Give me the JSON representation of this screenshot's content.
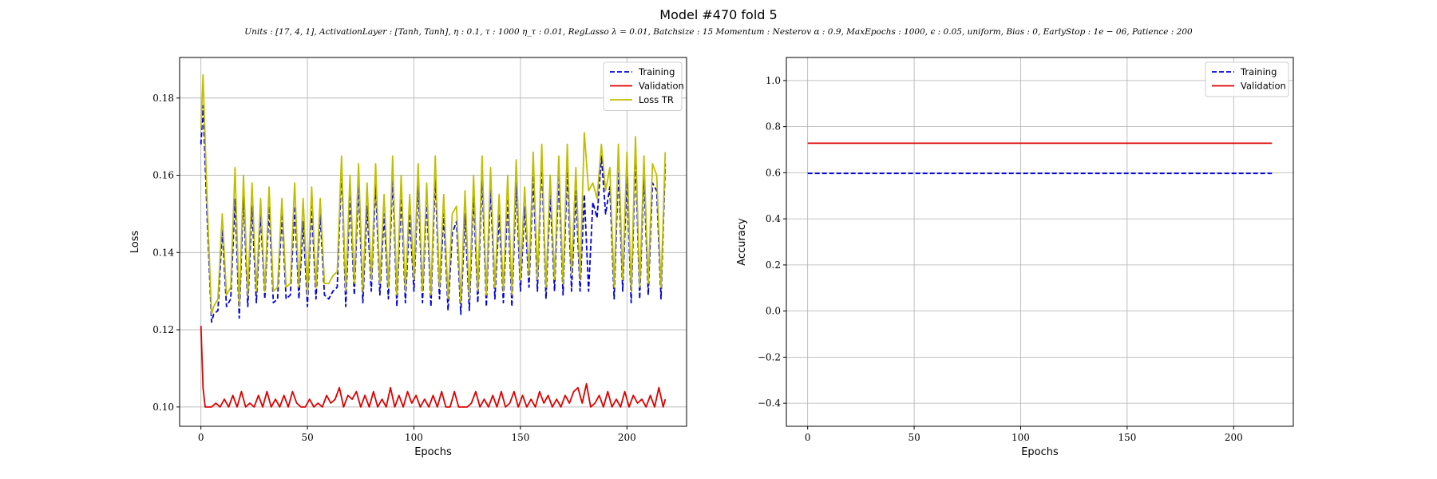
{
  "figure": {
    "title": "Model #470 fold 5",
    "subtitle": "Units : [17, 4, 1], ActivationLayer : [Tanh, Tanh], η : 0.1, τ : 1000 η_τ : 0.01, RegLasso λ = 0.01, Batchsize : 15 Momentum : Nesterov α : 0.9, MaxEpochs : 1000, ϵ : 0.05, uniform, Bias : 0, EarlyStop : 1e − 06, Patience : 200"
  },
  "colors": {
    "training": "#0000dd",
    "validation": "#dd0000",
    "loss_tr": "#bfbf00",
    "grid": "#b0b0b0"
  },
  "chart_data": [
    {
      "type": "line",
      "xlabel": "Epochs",
      "ylabel": "Loss",
      "xlim": [
        -10,
        228
      ],
      "ylim": [
        0.095,
        0.1905
      ],
      "xticks": [
        0,
        50,
        100,
        150,
        200
      ],
      "xtick_labels": [
        "0",
        "50",
        "100",
        "150",
        "200"
      ],
      "yticks": [
        0.1,
        0.12,
        0.14,
        0.16,
        0.18
      ],
      "ytick_labels": [
        "0.10",
        "0.12",
        "0.14",
        "0.16",
        "0.18"
      ],
      "grid": true,
      "legend": "top-right",
      "series": [
        {
          "name": "Training",
          "style": "dashed",
          "color": "#0000dd",
          "x": [
            0,
            1,
            3,
            5,
            6,
            8,
            10,
            12,
            14,
            16,
            18,
            20,
            22,
            24,
            26,
            28,
            30,
            32,
            34,
            36,
            38,
            40,
            42,
            44,
            46,
            48,
            50,
            52,
            54,
            56,
            58,
            60,
            62,
            64,
            66,
            68,
            70,
            72,
            74,
            76,
            78,
            80,
            82,
            84,
            86,
            88,
            90,
            92,
            94,
            96,
            98,
            100,
            102,
            104,
            106,
            108,
            110,
            112,
            114,
            116,
            118,
            120,
            122,
            124,
            126,
            128,
            130,
            132,
            134,
            136,
            138,
            140,
            142,
            144,
            146,
            148,
            150,
            152,
            154,
            156,
            158,
            160,
            162,
            164,
            166,
            168,
            170,
            172,
            174,
            176,
            178,
            180,
            182,
            184,
            186,
            188,
            190,
            192,
            194,
            196,
            198,
            200,
            202,
            204,
            206,
            208,
            210,
            212,
            214,
            216,
            218
          ],
          "y": [
            0.168,
            0.178,
            0.148,
            0.122,
            0.124,
            0.125,
            0.146,
            0.126,
            0.128,
            0.154,
            0.123,
            0.155,
            0.126,
            0.152,
            0.127,
            0.15,
            0.128,
            0.152,
            0.127,
            0.128,
            0.15,
            0.128,
            0.129,
            0.152,
            0.128,
            0.148,
            0.126,
            0.152,
            0.128,
            0.15,
            0.129,
            0.128,
            0.13,
            0.131,
            0.162,
            0.126,
            0.155,
            0.129,
            0.158,
            0.127,
            0.152,
            0.13,
            0.158,
            0.129,
            0.15,
            0.128,
            0.16,
            0.126,
            0.155,
            0.127,
            0.15,
            0.13,
            0.158,
            0.127,
            0.154,
            0.126,
            0.16,
            0.128,
            0.15,
            0.125,
            0.145,
            0.148,
            0.124,
            0.15,
            0.125,
            0.155,
            0.127,
            0.16,
            0.126,
            0.157,
            0.128,
            0.15,
            0.127,
            0.154,
            0.126,
            0.158,
            0.13,
            0.152,
            0.131,
            0.16,
            0.13,
            0.164,
            0.128,
            0.155,
            0.13,
            0.16,
            0.129,
            0.162,
            0.13,
            0.156,
            0.13,
            0.155,
            0.13,
            0.153,
            0.149,
            0.165,
            0.15,
            0.157,
            0.128,
            0.162,
            0.13,
            0.16,
            0.127,
            0.165,
            0.128,
            0.16,
            0.129,
            0.158,
            0.156,
            0.128,
            0.163
          ]
        },
        {
          "name": "Validation",
          "style": "solid",
          "color": "#dd0000",
          "x": [
            0,
            1,
            2,
            3,
            5,
            7,
            9,
            11,
            13,
            15,
            17,
            19,
            21,
            23,
            25,
            27,
            29,
            31,
            33,
            35,
            37,
            39,
            41,
            43,
            45,
            47,
            49,
            51,
            53,
            55,
            57,
            59,
            61,
            63,
            65,
            67,
            69,
            71,
            73,
            75,
            77,
            79,
            81,
            83,
            85,
            87,
            89,
            91,
            93,
            95,
            97,
            99,
            101,
            103,
            105,
            107,
            109,
            111,
            113,
            115,
            117,
            119,
            121,
            123,
            125,
            127,
            129,
            131,
            133,
            135,
            137,
            139,
            141,
            143,
            145,
            147,
            149,
            151,
            153,
            155,
            157,
            159,
            161,
            163,
            165,
            167,
            169,
            171,
            173,
            175,
            177,
            179,
            181,
            183,
            185,
            187,
            189,
            191,
            193,
            195,
            197,
            199,
            201,
            203,
            205,
            207,
            209,
            211,
            213,
            215,
            217,
            218
          ],
          "y": [
            0.121,
            0.105,
            0.1,
            0.1,
            0.1,
            0.101,
            0.1,
            0.102,
            0.1,
            0.103,
            0.1,
            0.104,
            0.1,
            0.101,
            0.1,
            0.103,
            0.1,
            0.104,
            0.1,
            0.102,
            0.1,
            0.103,
            0.1,
            0.104,
            0.101,
            0.1,
            0.1,
            0.102,
            0.1,
            0.101,
            0.1,
            0.103,
            0.101,
            0.102,
            0.105,
            0.1,
            0.103,
            0.102,
            0.104,
            0.1,
            0.103,
            0.1,
            0.104,
            0.1,
            0.102,
            0.1,
            0.105,
            0.1,
            0.103,
            0.1,
            0.104,
            0.101,
            0.103,
            0.1,
            0.102,
            0.1,
            0.103,
            0.1,
            0.104,
            0.1,
            0.1,
            0.104,
            0.1,
            0.1,
            0.1,
            0.101,
            0.104,
            0.1,
            0.102,
            0.1,
            0.103,
            0.1,
            0.104,
            0.1,
            0.101,
            0.104,
            0.1,
            0.103,
            0.1,
            0.102,
            0.1,
            0.104,
            0.101,
            0.103,
            0.1,
            0.102,
            0.1,
            0.103,
            0.101,
            0.104,
            0.105,
            0.101,
            0.106,
            0.1,
            0.101,
            0.103,
            0.1,
            0.104,
            0.1,
            0.102,
            0.1,
            0.104,
            0.1,
            0.103,
            0.101,
            0.102,
            0.1,
            0.103,
            0.1,
            0.105,
            0.1,
            0.102
          ]
        },
        {
          "name": "Loss TR",
          "style": "solid",
          "color": "#bfbf00",
          "x": [
            0,
            1,
            3,
            5,
            6,
            8,
            10,
            12,
            14,
            16,
            18,
            20,
            22,
            24,
            26,
            28,
            30,
            32,
            34,
            36,
            38,
            40,
            42,
            44,
            46,
            48,
            50,
            52,
            54,
            56,
            58,
            60,
            62,
            64,
            66,
            68,
            70,
            72,
            74,
            76,
            78,
            80,
            82,
            84,
            86,
            88,
            90,
            92,
            94,
            96,
            98,
            100,
            102,
            104,
            106,
            108,
            110,
            112,
            114,
            116,
            118,
            120,
            122,
            124,
            126,
            128,
            130,
            132,
            134,
            136,
            138,
            140,
            142,
            144,
            146,
            148,
            150,
            152,
            154,
            156,
            158,
            160,
            162,
            164,
            166,
            168,
            170,
            172,
            174,
            176,
            178,
            180,
            182,
            184,
            186,
            188,
            190,
            192,
            194,
            196,
            198,
            200,
            202,
            204,
            206,
            208,
            210,
            212,
            214,
            216,
            218
          ],
          "y": [
            0.172,
            0.186,
            0.152,
            0.124,
            0.126,
            0.128,
            0.15,
            0.129,
            0.131,
            0.162,
            0.126,
            0.16,
            0.129,
            0.158,
            0.13,
            0.154,
            0.13,
            0.157,
            0.13,
            0.131,
            0.154,
            0.131,
            0.132,
            0.158,
            0.131,
            0.154,
            0.129,
            0.157,
            0.131,
            0.154,
            0.132,
            0.132,
            0.134,
            0.135,
            0.165,
            0.13,
            0.16,
            0.132,
            0.163,
            0.13,
            0.158,
            0.133,
            0.163,
            0.132,
            0.155,
            0.131,
            0.165,
            0.129,
            0.16,
            0.13,
            0.155,
            0.133,
            0.163,
            0.13,
            0.158,
            0.129,
            0.165,
            0.131,
            0.155,
            0.128,
            0.15,
            0.152,
            0.127,
            0.156,
            0.128,
            0.16,
            0.13,
            0.165,
            0.129,
            0.162,
            0.131,
            0.155,
            0.13,
            0.16,
            0.129,
            0.164,
            0.133,
            0.157,
            0.134,
            0.166,
            0.133,
            0.168,
            0.131,
            0.16,
            0.133,
            0.165,
            0.132,
            0.168,
            0.134,
            0.162,
            0.133,
            0.171,
            0.156,
            0.158,
            0.154,
            0.168,
            0.156,
            0.162,
            0.131,
            0.168,
            0.133,
            0.166,
            0.13,
            0.17,
            0.131,
            0.165,
            0.132,
            0.163,
            0.16,
            0.131,
            0.166
          ]
        }
      ]
    },
    {
      "type": "line",
      "xlabel": "Epochs",
      "ylabel": "Accuracy",
      "xlim": [
        -10,
        228
      ],
      "ylim": [
        -0.5,
        1.1
      ],
      "xticks": [
        0,
        50,
        100,
        150,
        200
      ],
      "xtick_labels": [
        "0",
        "50",
        "100",
        "150",
        "200"
      ],
      "yticks": [
        -0.4,
        -0.2,
        0.0,
        0.2,
        0.4,
        0.6,
        0.8,
        1.0
      ],
      "ytick_labels": [
        "−0.4",
        "−0.2",
        "0.0",
        "0.2",
        "0.4",
        "0.6",
        "0.8",
        "1.0"
      ],
      "grid": true,
      "legend": "top-right",
      "series": [
        {
          "name": "Training",
          "style": "dashed",
          "color": "#0000dd",
          "x": [
            0,
            218
          ],
          "y": [
            0.597,
            0.597
          ]
        },
        {
          "name": "Validation",
          "style": "solid",
          "color": "#dd0000",
          "x": [
            0,
            218
          ],
          "y": [
            0.728,
            0.728
          ]
        }
      ]
    }
  ]
}
